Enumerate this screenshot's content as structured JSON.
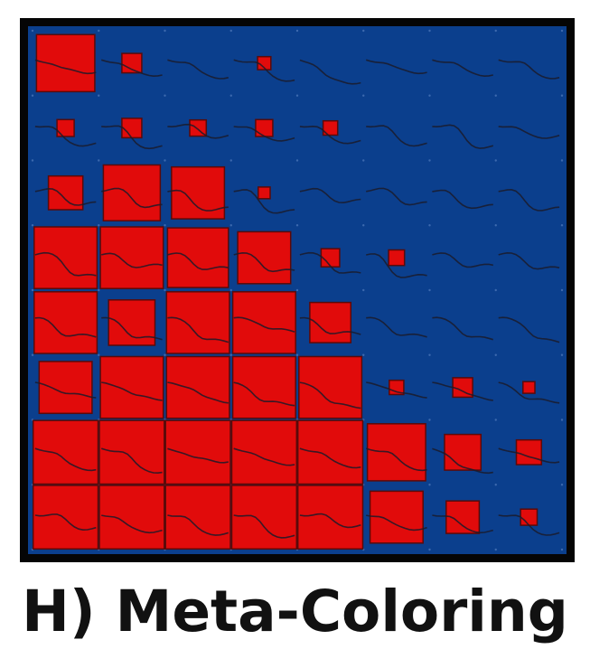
{
  "caption": "H) Meta-Coloring",
  "colors": {
    "background": "#0b3f8d",
    "cell_fill": "#e10b0b",
    "cell_stroke": "#5a0a0a",
    "frame": "#050505",
    "curve": "#1b1b2a",
    "grid_dot": "#5d86c4"
  },
  "matrix": {
    "rows": 8,
    "cols": 8,
    "red_square_fraction": [
      [
        0.88,
        0.3,
        0.0,
        0.2,
        0.0,
        0.0,
        0.0,
        0.0
      ],
      [
        0.26,
        0.3,
        0.25,
        0.26,
        0.22,
        0.0,
        0.0,
        0.0
      ],
      [
        0.52,
        0.86,
        0.8,
        0.18,
        0.0,
        0.0,
        0.0,
        0.0
      ],
      [
        0.95,
        0.95,
        0.92,
        0.8,
        0.28,
        0.24,
        0.0,
        0.0
      ],
      [
        0.95,
        0.7,
        0.95,
        0.95,
        0.62,
        0.0,
        0.0,
        0.0
      ],
      [
        0.8,
        0.95,
        0.95,
        0.95,
        0.95,
        0.22,
        0.3,
        0.18
      ],
      [
        0.98,
        0.98,
        0.98,
        0.98,
        0.98,
        0.88,
        0.55,
        0.38
      ],
      [
        0.98,
        0.98,
        0.98,
        0.98,
        0.98,
        0.8,
        0.5,
        0.25
      ]
    ]
  }
}
